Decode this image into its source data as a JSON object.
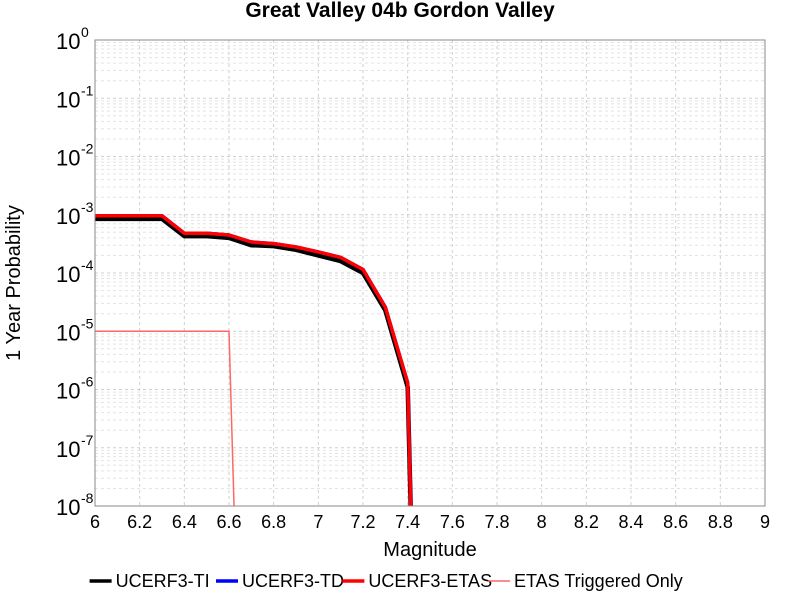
{
  "chart_data": {
    "type": "line",
    "title": "Great Valley 04b Gordon Valley",
    "xlabel": "Magnitude",
    "ylabel": "1 Year Probability",
    "xlim": [
      6,
      9
    ],
    "ylim": [
      1e-08,
      1
    ],
    "yscale": "log",
    "x_ticks": [
      "6",
      "6.2",
      "6.4",
      "6.6",
      "6.8",
      "7",
      "7.2",
      "7.4",
      "7.6",
      "7.8",
      "8",
      "8.2",
      "8.4",
      "8.6",
      "8.8",
      "9"
    ],
    "y_tick_base": "10",
    "y_tick_exponents": [
      "0",
      "-1",
      "-2",
      "-3",
      "-4",
      "-5",
      "-6",
      "-7",
      "-8"
    ],
    "grid": true,
    "legend_position": "bottom",
    "series": [
      {
        "name": "UCERF3-TI",
        "color": "#000000",
        "x": [
          6.0,
          6.1,
          6.2,
          6.3,
          6.4,
          6.5,
          6.6,
          6.7,
          6.8,
          6.9,
          7.0,
          7.1,
          7.2,
          7.3,
          7.4,
          7.42
        ],
        "y": [
          0.00085,
          0.00085,
          0.00085,
          0.00085,
          0.00043,
          0.00043,
          0.0004,
          0.0003,
          0.00029,
          0.00025,
          0.0002,
          0.00016,
          0.0001,
          2.3e-05,
          1.1e-06,
          1e-09
        ]
      },
      {
        "name": "UCERF3-TD",
        "color": "#0000ff",
        "x": [
          6.0,
          6.1,
          6.2,
          6.3,
          6.4,
          6.5,
          6.6,
          6.7,
          6.8,
          6.9,
          7.0,
          7.1,
          7.2,
          7.3,
          7.4,
          7.42
        ],
        "y": [
          0.00096,
          0.00096,
          0.00096,
          0.00096,
          0.00048,
          0.00048,
          0.00045,
          0.00034,
          0.00032,
          0.00028,
          0.00023,
          0.000185,
          0.000115,
          2.6e-05,
          1.3e-06,
          1e-09
        ]
      },
      {
        "name": "UCERF3-ETAS",
        "color": "#ff0000",
        "x": [
          6.0,
          6.1,
          6.2,
          6.3,
          6.4,
          6.5,
          6.6,
          6.7,
          6.8,
          6.9,
          7.0,
          7.1,
          7.2,
          7.3,
          7.4,
          7.42
        ],
        "y": [
          0.00096,
          0.00096,
          0.00096,
          0.00096,
          0.00048,
          0.00048,
          0.00045,
          0.00034,
          0.00032,
          0.00028,
          0.00023,
          0.000185,
          0.000115,
          2.6e-05,
          1.3e-06,
          1e-09
        ]
      },
      {
        "name": "ETAS Triggered Only",
        "color": "#ff6666",
        "x": [
          6.0,
          6.6,
          6.63
        ],
        "y": [
          1e-05,
          1e-05,
          1e-09
        ]
      }
    ]
  }
}
